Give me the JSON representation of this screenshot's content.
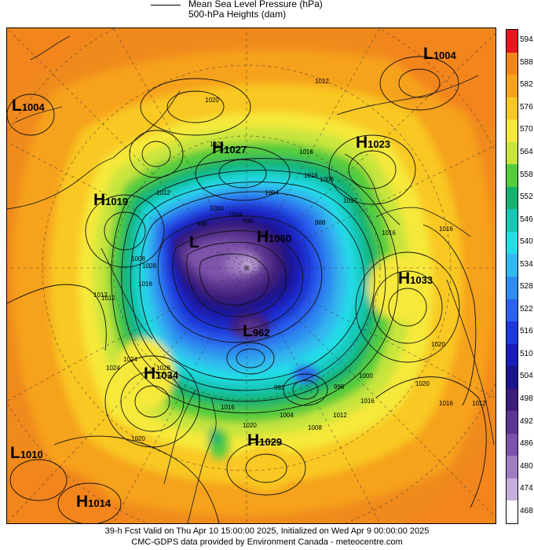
{
  "legend": {
    "line_label": "Mean Sea Level Pressure (hPa)",
    "fill_label": "500-hPa Heights (dam)"
  },
  "colorbar": {
    "levels": [
      "594",
      "588",
      "582",
      "576",
      "570",
      "564",
      "558",
      "552",
      "546",
      "540",
      "534",
      "528",
      "522",
      "516",
      "510",
      "504",
      "498",
      "492",
      "486",
      "480",
      "474",
      "468"
    ],
    "colors": [
      "#e8161e",
      "#f2851a",
      "#f6a21c",
      "#f9c823",
      "#f6e93a",
      "#c8e53c",
      "#55cc3d",
      "#14b26e",
      "#14c8b8",
      "#24dde6",
      "#32b8ee",
      "#2e8ff0",
      "#2a62ec",
      "#1f38dc",
      "#1a1eb8",
      "#1a158a",
      "#3c1e7a",
      "#5c3592",
      "#7e52aa",
      "#a07cc2",
      "#c6aedc",
      "#ffffff"
    ]
  },
  "centers": [
    {
      "type": "L",
      "value": "1004"
    },
    {
      "type": "L",
      "value": "1004"
    },
    {
      "type": "H",
      "value": "1027"
    },
    {
      "type": "H",
      "value": "1023"
    },
    {
      "type": "H",
      "value": "1019"
    },
    {
      "type": "L",
      "value": ""
    },
    {
      "type": "H",
      "value": "1060"
    },
    {
      "type": "H",
      "value": "1033"
    },
    {
      "type": "L",
      "value": "962"
    },
    {
      "type": "H",
      "value": "1034"
    },
    {
      "type": "H",
      "value": "1029"
    },
    {
      "type": "L",
      "value": "1010"
    },
    {
      "type": "H",
      "value": "1014"
    }
  ],
  "contour_labels": [
    "1012",
    "1020",
    "1024",
    "1016",
    "1012",
    "1016",
    "1008",
    "1017",
    "1016",
    "1000",
    "996",
    "1004",
    "988",
    "1012",
    "1008",
    "1016",
    "1012",
    "1024",
    "1028",
    "1016",
    "1000",
    "996",
    "992",
    "1004",
    "1008",
    "1012",
    "1016",
    "1020",
    "1020",
    "1008",
    "996",
    "1004",
    "1024",
    "1020",
    "1016",
    "1012",
    "1016",
    "1020"
  ],
  "footer": {
    "line1": "39-h Fcst Valid on Thu Apr 10 15:00:00 2025, Initialized on Wed Apr  9 00:00:00 2025",
    "line2": "CMC-GDPS data provided by Environment Canada - meteocentre.com"
  }
}
